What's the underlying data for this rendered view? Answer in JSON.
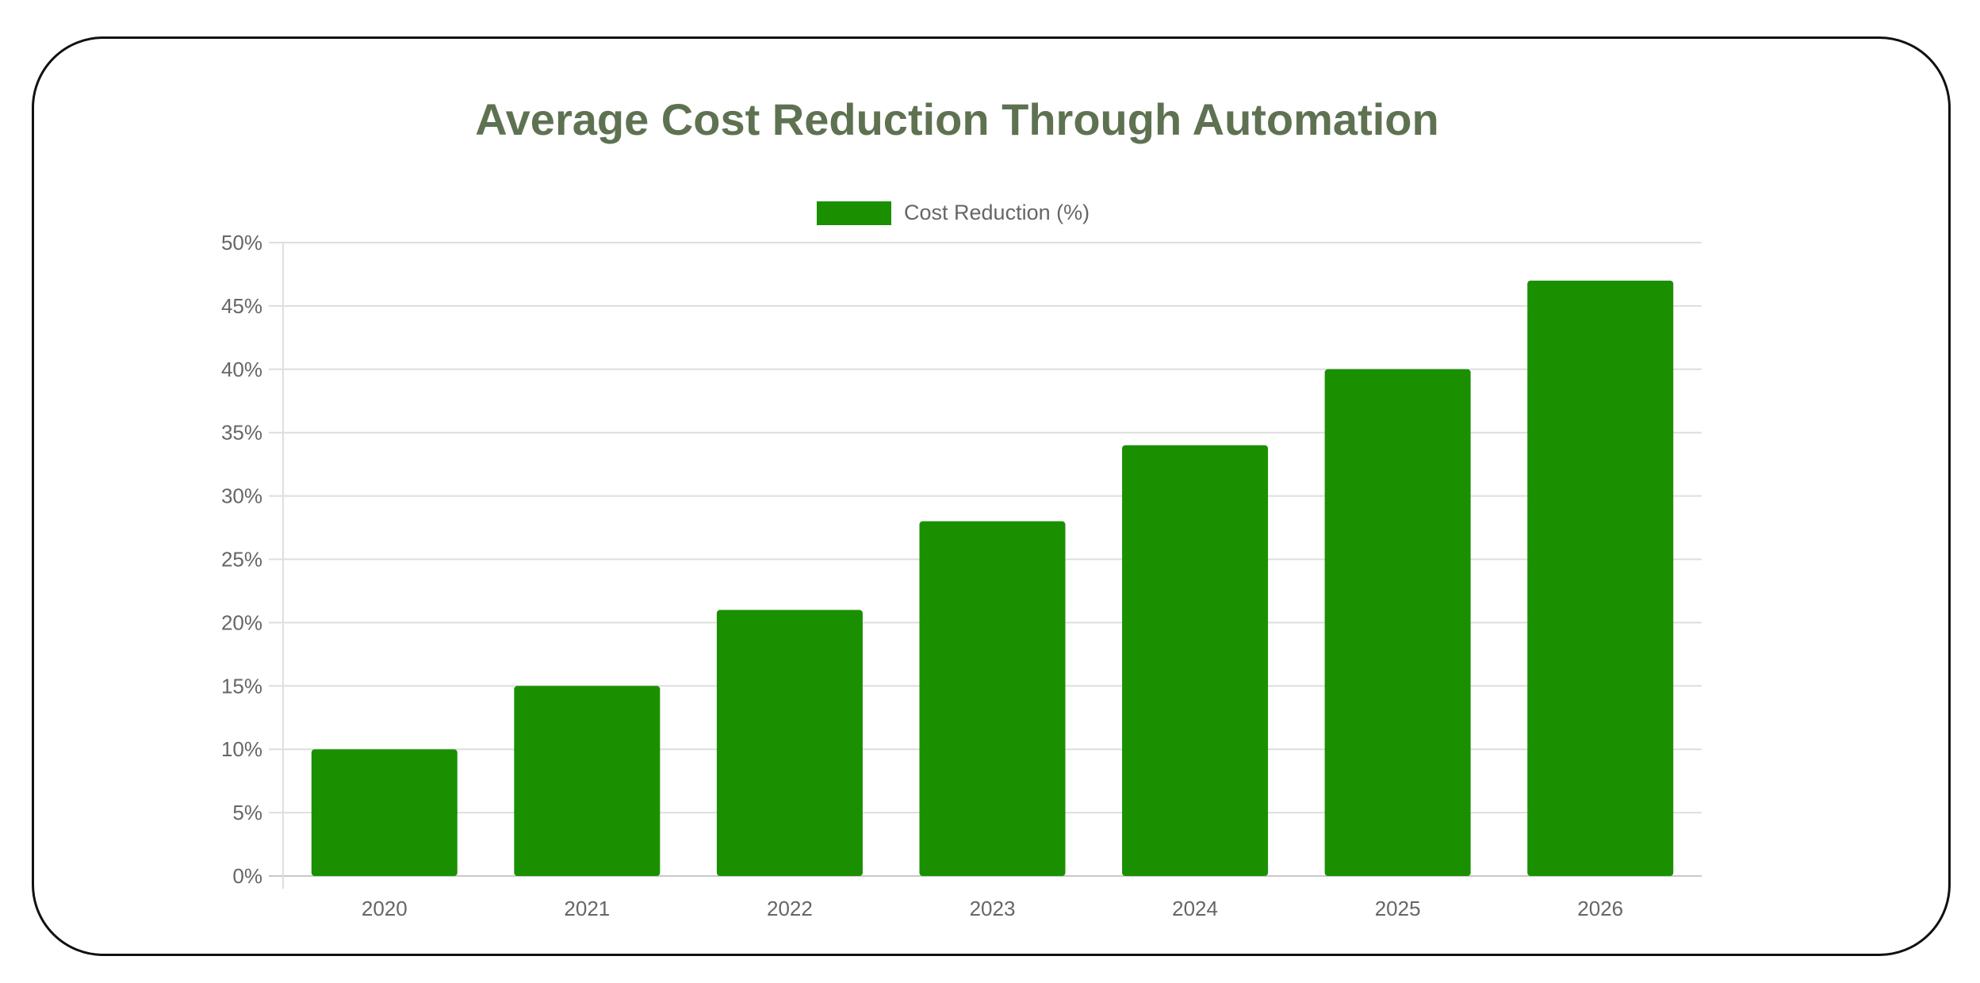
{
  "chart_data": {
    "type": "bar",
    "title": "Average Cost Reduction Through Automation",
    "categories": [
      "2020",
      "2021",
      "2022",
      "2023",
      "2024",
      "2025",
      "2026"
    ],
    "series": [
      {
        "name": "Cost Reduction (%)",
        "values": [
          10,
          15,
          21,
          28,
          34,
          40,
          47
        ],
        "color": "#1a9000"
      }
    ],
    "ylim": [
      0,
      50
    ],
    "yticks": [
      "0%",
      "5%",
      "10%",
      "15%",
      "20%",
      "25%",
      "30%",
      "35%",
      "40%",
      "45%",
      "50%"
    ],
    "grid": true,
    "legend": "top-center"
  }
}
